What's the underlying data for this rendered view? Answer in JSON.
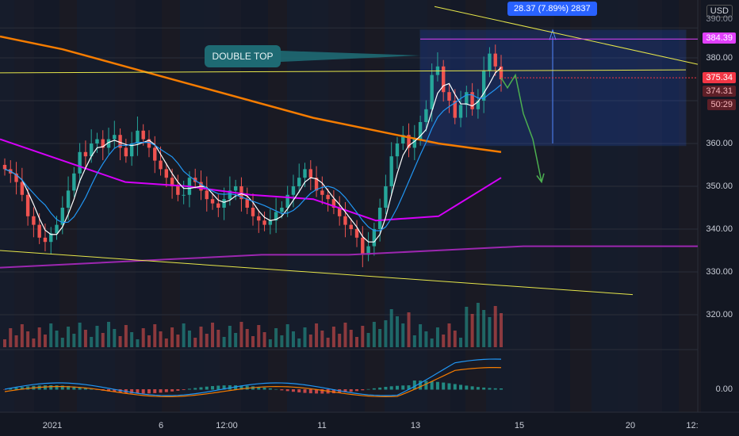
{
  "currency": "USD",
  "measure_label": "28.37 (7.89%) 2837",
  "annotation": "DOUBLE TOP",
  "price_axis": {
    "ticks": [
      "380.00",
      "370.00",
      "360.00",
      "350.00",
      "340.00",
      "330.00",
      "320.00"
    ],
    "top_partial": "390.00",
    "macd_tick": "0.00",
    "tags": [
      {
        "text": "384.39",
        "color": "#e040fb"
      },
      {
        "text": "375.34",
        "color": "#f23645"
      },
      {
        "text": "374.31",
        "color": "#f23645"
      },
      {
        "text": "50:29",
        "color": "#f23645"
      }
    ]
  },
  "time_axis": [
    "2021",
    "6",
    "12:00",
    "11",
    "13",
    "15",
    "20",
    "12:"
  ],
  "chart_data": {
    "type": "candlestick",
    "ylim": [
      316,
      392
    ],
    "resistance_level": 384.39,
    "last_price": 375.34,
    "candles_close": [
      354,
      353,
      351,
      348,
      343,
      341,
      338,
      337,
      339,
      341,
      345,
      349,
      353,
      358,
      357,
      360,
      361,
      359,
      361,
      362,
      359,
      357,
      360,
      363,
      361,
      359,
      356,
      354,
      352,
      350,
      348,
      348,
      352,
      351,
      349,
      347,
      346,
      345,
      347,
      349,
      350,
      347,
      345,
      343,
      342,
      341,
      342,
      344,
      345,
      348,
      350,
      352,
      354,
      352,
      349,
      348,
      347,
      345,
      343,
      341,
      340,
      338,
      334,
      336,
      340,
      345,
      350,
      357,
      360,
      362,
      359,
      361,
      365,
      368,
      376,
      378,
      372,
      370,
      366,
      369,
      372,
      368,
      370,
      377,
      381,
      378,
      375
    ],
    "moving_averages": [
      {
        "name": "MA orange",
        "values": [
          385,
          382,
          378,
          374,
          370,
          366,
          363,
          360,
          358
        ]
      },
      {
        "name": "MA magenta",
        "values": [
          361,
          356,
          351,
          350,
          348,
          347,
          342,
          343,
          352
        ]
      },
      {
        "name": "MA purple",
        "values": [
          331,
          332,
          333,
          334,
          334,
          335,
          336,
          336,
          336
        ]
      }
    ],
    "trendlines": [
      {
        "from": [
          0,
          376.5
        ],
        "to": [
          1,
          377.2
        ]
      },
      {
        "from": [
          0,
          335
        ],
        "to": [
          1,
          324
        ]
      },
      {
        "from": [
          0,
          391
        ],
        "to": [
          1,
          378.5
        ]
      }
    ],
    "projection": [
      375.34,
      373,
      376,
      367,
      361,
      351
    ]
  }
}
